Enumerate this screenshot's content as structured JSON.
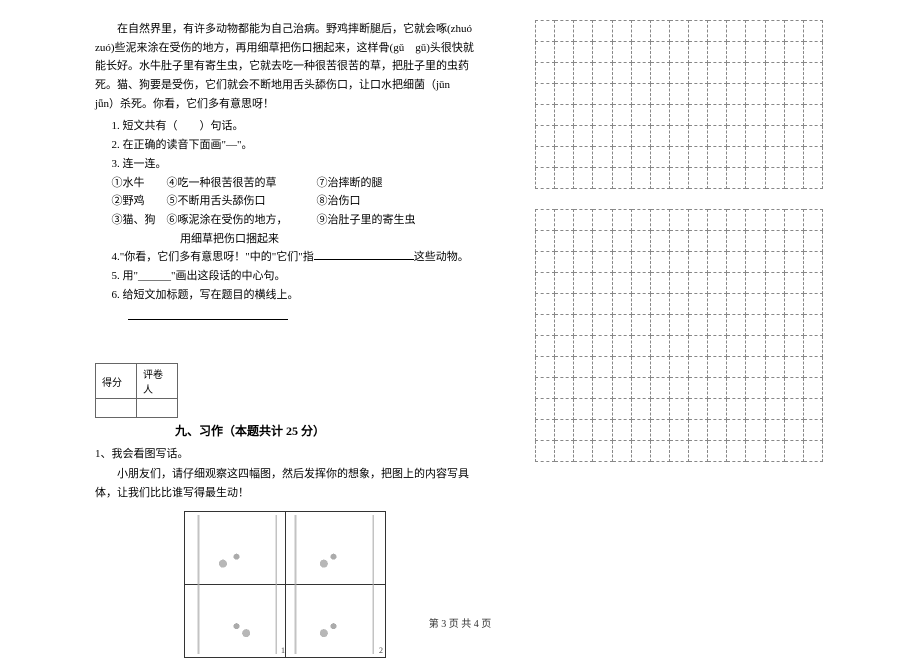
{
  "passage": "在自然界里，有许多动物都能为自己治病。野鸡摔断腿后，它就会啄(zhuó　zuó)些泥来涂在受伤的地方，再用细草把伤口捆起来，这样骨(gǔ　gū)头很快就能长好。水牛肚子里有寄生虫，它就去吃一种很苦很苦的草，把肚子里的虫药死。猫、狗要是受伤，它们就会不断地用舌头舔伤口，让口水把细菌（jūn　jǖn）杀死。你看，它们多有意思呀！",
  "q1": "1. 短文共有（　　）句话。",
  "q2": "2. 在正确的读音下面画\"—\"。",
  "q3": "3. 连一连。",
  "match": {
    "r1c1": "①水牛",
    "r1c2": "④吃一种很苦很苦的草",
    "r1c3": "⑦治摔断的腿",
    "r2c1": "②野鸡",
    "r2c2": "⑤不断用舌头舔伤口",
    "r2c3": "⑧治伤口",
    "r3c1": "③猫、狗",
    "r3c2": "⑥啄泥涂在受伤的地方，",
    "r3c3": "⑨治肚子里的寄生虫",
    "extra": "用细草把伤口捆起来"
  },
  "q4a": "4.\"你看，它们多有意思呀！\"中的\"它们\"指",
  "q4b": "这些动物。",
  "q5": "5. 用\"______\"画出这段话的中心句。",
  "q6": "6. 给短文加标题，写在题目的横线上。",
  "scoreTable": {
    "得分": "得分",
    "评卷人": "评卷人"
  },
  "sectionTitle": "九、习作（本题共计 25 分）",
  "writing1": "1、我会看图写话。",
  "writingPrompt": "小朋友们，请仔细观察这四幅图，然后发挥你的想象，把图上的内容写具体，让我们比比谁写得最生动！",
  "footer": "第 3 页 共 4 页",
  "grid": {
    "rows1": 8,
    "rows2": 12,
    "cols": 15,
    "cellSize": 18,
    "borderStyle": "dashed",
    "borderColor": "#888888"
  },
  "colors": {
    "text": "#000000",
    "background": "#ffffff",
    "tableBorder": "#666666"
  },
  "fonts": {
    "body": 11,
    "section": 12,
    "footer": 10
  }
}
